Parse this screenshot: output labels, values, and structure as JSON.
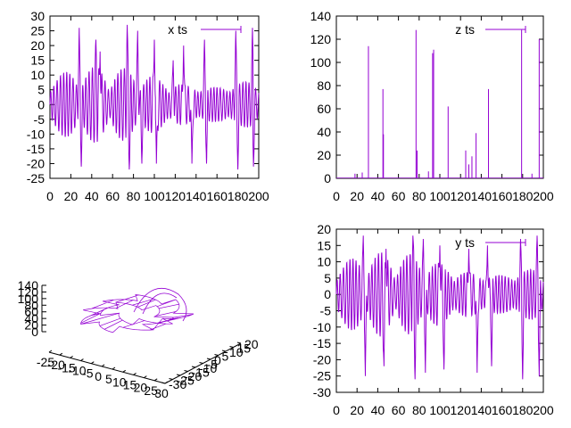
{
  "line_color": "#9400d3",
  "chart_data": [
    {
      "type": "line",
      "legend": "x ts",
      "legend_position": "top-right",
      "xlim": [
        0,
        200
      ],
      "ylim": [
        -25,
        30
      ],
      "xticks": [
        0,
        20,
        40,
        60,
        80,
        100,
        120,
        140,
        160,
        180,
        200
      ],
      "yticks": [
        -25,
        -20,
        -15,
        -10,
        -5,
        0,
        5,
        10,
        15,
        20,
        25,
        30
      ],
      "peaks": [
        {
          "x": 28,
          "y": 26
        },
        {
          "x": 44,
          "y": 22
        },
        {
          "x": 48,
          "y": 18
        },
        {
          "x": 74,
          "y": 27
        },
        {
          "x": 84,
          "y": 25
        },
        {
          "x": 100,
          "y": 22
        },
        {
          "x": 118,
          "y": 15
        },
        {
          "x": 128,
          "y": 20
        },
        {
          "x": 148,
          "y": 22
        },
        {
          "x": 178,
          "y": 25
        },
        {
          "x": 194,
          "y": 26
        }
      ],
      "troughs": [
        {
          "x": 30,
          "y": -21
        },
        {
          "x": 76,
          "y": -22
        },
        {
          "x": 88,
          "y": -20
        },
        {
          "x": 102,
          "y": -20
        },
        {
          "x": 136,
          "y": -20
        },
        {
          "x": 150,
          "y": -20
        },
        {
          "x": 180,
          "y": -22
        },
        {
          "x": 195,
          "y": -21
        }
      ]
    },
    {
      "type": "line",
      "legend": "z ts",
      "legend_position": "top-right",
      "xlim": [
        0,
        200
      ],
      "ylim": [
        0,
        140
      ],
      "xticks": [
        0,
        20,
        40,
        60,
        80,
        100,
        120,
        140,
        160,
        180,
        200
      ],
      "yticks": [
        0,
        20,
        40,
        60,
        80,
        100,
        120,
        140
      ],
      "spikes": [
        {
          "x": 18,
          "y": 4
        },
        {
          "x": 25,
          "y": 5
        },
        {
          "x": 31,
          "y": 114
        },
        {
          "x": 45,
          "y": 77
        },
        {
          "x": 45.5,
          "y": 38
        },
        {
          "x": 77,
          "y": 128
        },
        {
          "x": 78,
          "y": 24
        },
        {
          "x": 89,
          "y": 6
        },
        {
          "x": 93,
          "y": 108
        },
        {
          "x": 94,
          "y": 111
        },
        {
          "x": 108,
          "y": 62
        },
        {
          "x": 125,
          "y": 24
        },
        {
          "x": 128,
          "y": 12
        },
        {
          "x": 131,
          "y": 19
        },
        {
          "x": 135,
          "y": 39
        },
        {
          "x": 147,
          "y": 77
        },
        {
          "x": 179,
          "y": 128
        },
        {
          "x": 189,
          "y": 4
        },
        {
          "x": 196,
          "y": 120
        }
      ]
    },
    {
      "type": "line",
      "legend": "",
      "projection": "3d",
      "zticks": [
        0,
        20,
        40,
        60,
        80,
        100,
        120,
        140
      ],
      "xtick_labels": [
        "-25",
        "-20",
        "-15",
        "-10",
        "-5",
        "0",
        "5",
        "10",
        "15",
        "20",
        "25",
        "30"
      ],
      "ytick_labels": [
        "-30",
        "-25",
        "-20",
        "-15",
        "-10",
        "-5",
        "0",
        "5",
        "10",
        "15",
        "20"
      ]
    },
    {
      "type": "line",
      "legend": "y ts",
      "legend_position": "top-right",
      "xlim": [
        0,
        200
      ],
      "ylim": [
        -30,
        20
      ],
      "xticks": [
        0,
        20,
        40,
        60,
        80,
        100,
        120,
        140,
        160,
        180,
        200
      ],
      "yticks": [
        -30,
        -25,
        -20,
        -15,
        -10,
        -5,
        0,
        5,
        10,
        15,
        20
      ],
      "peaks": [
        {
          "x": 26,
          "y": 18
        },
        {
          "x": 48,
          "y": 14
        },
        {
          "x": 74,
          "y": 18
        },
        {
          "x": 84,
          "y": 17
        },
        {
          "x": 100,
          "y": 15
        },
        {
          "x": 128,
          "y": 14
        },
        {
          "x": 146,
          "y": 15
        },
        {
          "x": 178,
          "y": 17
        },
        {
          "x": 194,
          "y": 18
        }
      ],
      "troughs": [
        {
          "x": 28,
          "y": -25
        },
        {
          "x": 46,
          "y": -22
        },
        {
          "x": 76,
          "y": -26
        },
        {
          "x": 86,
          "y": -24
        },
        {
          "x": 104,
          "y": -23
        },
        {
          "x": 136,
          "y": -24
        },
        {
          "x": 150,
          "y": -22
        },
        {
          "x": 180,
          "y": -26
        },
        {
          "x": 196,
          "y": -25
        }
      ]
    }
  ]
}
